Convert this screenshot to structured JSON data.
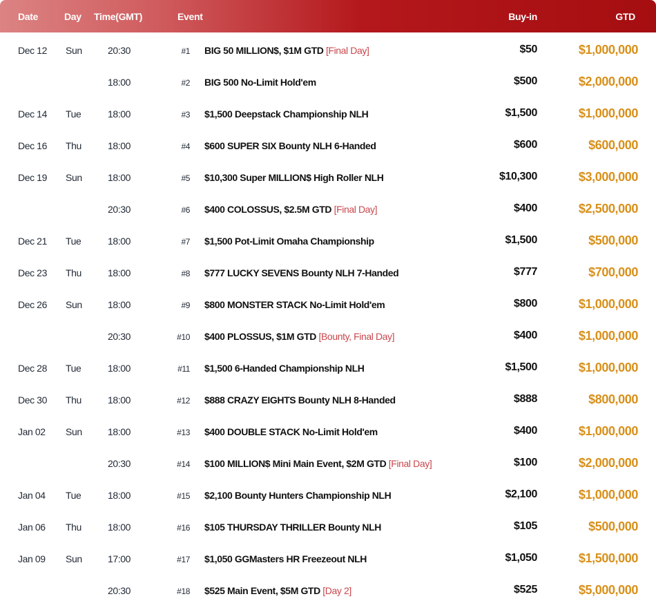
{
  "header": {
    "date": "Date",
    "day": "Day",
    "time": "Time(GMT)",
    "event": "Event",
    "buyin": "Buy-in",
    "gtd": "GTD"
  },
  "colors": {
    "header_start": "#dc8383",
    "header_end": "#a50e10",
    "gtd": "#d8901a",
    "tag": "#c8474c"
  },
  "rows": [
    {
      "date": "Dec 12",
      "day": "Sun",
      "time": "20:30",
      "num": "#1",
      "event": "BIG 50 MILLION$, $1M GTD",
      "tag": "[Final Day]",
      "buyin": "$50",
      "gtd": "$1,000,000"
    },
    {
      "date": "",
      "day": "",
      "time": "18:00",
      "num": "#2",
      "event": "BIG 500 No-Limit Hold'em",
      "tag": "",
      "buyin": "$500",
      "gtd": "$2,000,000"
    },
    {
      "date": "Dec 14",
      "day": "Tue",
      "time": "18:00",
      "num": "#3",
      "event": "$1,500 Deepstack Championship NLH",
      "tag": "",
      "buyin": "$1,500",
      "gtd": "$1,000,000"
    },
    {
      "date": "Dec 16",
      "day": "Thu",
      "time": "18:00",
      "num": "#4",
      "event": "$600 SUPER SIX Bounty NLH 6-Handed",
      "tag": "",
      "buyin": "$600",
      "gtd": "$600,000"
    },
    {
      "date": "Dec 19",
      "day": "Sun",
      "time": "18:00",
      "num": "#5",
      "event": "$10,300 Super MILLION$ High Roller NLH",
      "tag": "",
      "buyin": "$10,300",
      "gtd": "$3,000,000"
    },
    {
      "date": "",
      "day": "",
      "time": "20:30",
      "num": "#6",
      "event": "$400 COLOSSUS, $2.5M GTD",
      "tag": "[Final Day]",
      "buyin": "$400",
      "gtd": "$2,500,000"
    },
    {
      "date": "Dec 21",
      "day": "Tue",
      "time": "18:00",
      "num": "#7",
      "event": "$1,500 Pot-Limit Omaha Championship",
      "tag": "",
      "buyin": "$1,500",
      "gtd": "$500,000"
    },
    {
      "date": "Dec 23",
      "day": "Thu",
      "time": "18:00",
      "num": "#8",
      "event": "$777 LUCKY SEVENS Bounty NLH 7-Handed",
      "tag": "",
      "buyin": "$777",
      "gtd": "$700,000"
    },
    {
      "date": "Dec 26",
      "day": "Sun",
      "time": "18:00",
      "num": "#9",
      "event": "$800 MONSTER STACK No-Limit Hold'em",
      "tag": "",
      "buyin": "$800",
      "gtd": "$1,000,000"
    },
    {
      "date": "",
      "day": "",
      "time": "20:30",
      "num": "#10",
      "event": "$400 PLOSSUS, $1M GTD",
      "tag": "[Bounty, Final Day]",
      "buyin": "$400",
      "gtd": "$1,000,000"
    },
    {
      "date": "Dec 28",
      "day": "Tue",
      "time": "18:00",
      "num": "#11",
      "event": "$1,500 6-Handed Championship NLH",
      "tag": "",
      "buyin": "$1,500",
      "gtd": "$1,000,000"
    },
    {
      "date": "Dec 30",
      "day": "Thu",
      "time": "18:00",
      "num": "#12",
      "event": "$888 CRAZY EIGHTS Bounty NLH 8-Handed",
      "tag": "",
      "buyin": "$888",
      "gtd": "$800,000"
    },
    {
      "date": "Jan 02",
      "day": "Sun",
      "time": "18:00",
      "num": "#13",
      "event": "$400 DOUBLE STACK No-Limit Hold'em",
      "tag": "",
      "buyin": "$400",
      "gtd": "$1,000,000"
    },
    {
      "date": "",
      "day": "",
      "time": "20:30",
      "num": "#14",
      "event": "$100 MILLION$ Mini Main Event, $2M GTD",
      "tag": "[Final Day]",
      "buyin": "$100",
      "gtd": "$2,000,000"
    },
    {
      "date": "Jan  04",
      "day": "Tue",
      "time": "18:00",
      "num": "#15",
      "event": "$2,100 Bounty Hunters Championship NLH",
      "tag": "",
      "buyin": "$2,100",
      "gtd": "$1,000,000"
    },
    {
      "date": "Jan 06",
      "day": "Thu",
      "time": "18:00",
      "num": "#16",
      "event": "$105 THURSDAY THRILLER Bounty NLH",
      "tag": "",
      "buyin": "$105",
      "gtd": "$500,000"
    },
    {
      "date": "Jan 09",
      "day": "Sun",
      "time": "17:00",
      "num": "#17",
      "event": "$1,050 GGMasters HR Freezeout NLH",
      "tag": "",
      "buyin": "$1,050",
      "gtd": "$1,500,000"
    },
    {
      "date": "",
      "day": "",
      "time": "20:30",
      "num": "#18",
      "event": "$525 Main Event, $5M GTD",
      "tag": "[Day 2]",
      "buyin": "$525",
      "gtd": "$5,000,000"
    }
  ]
}
